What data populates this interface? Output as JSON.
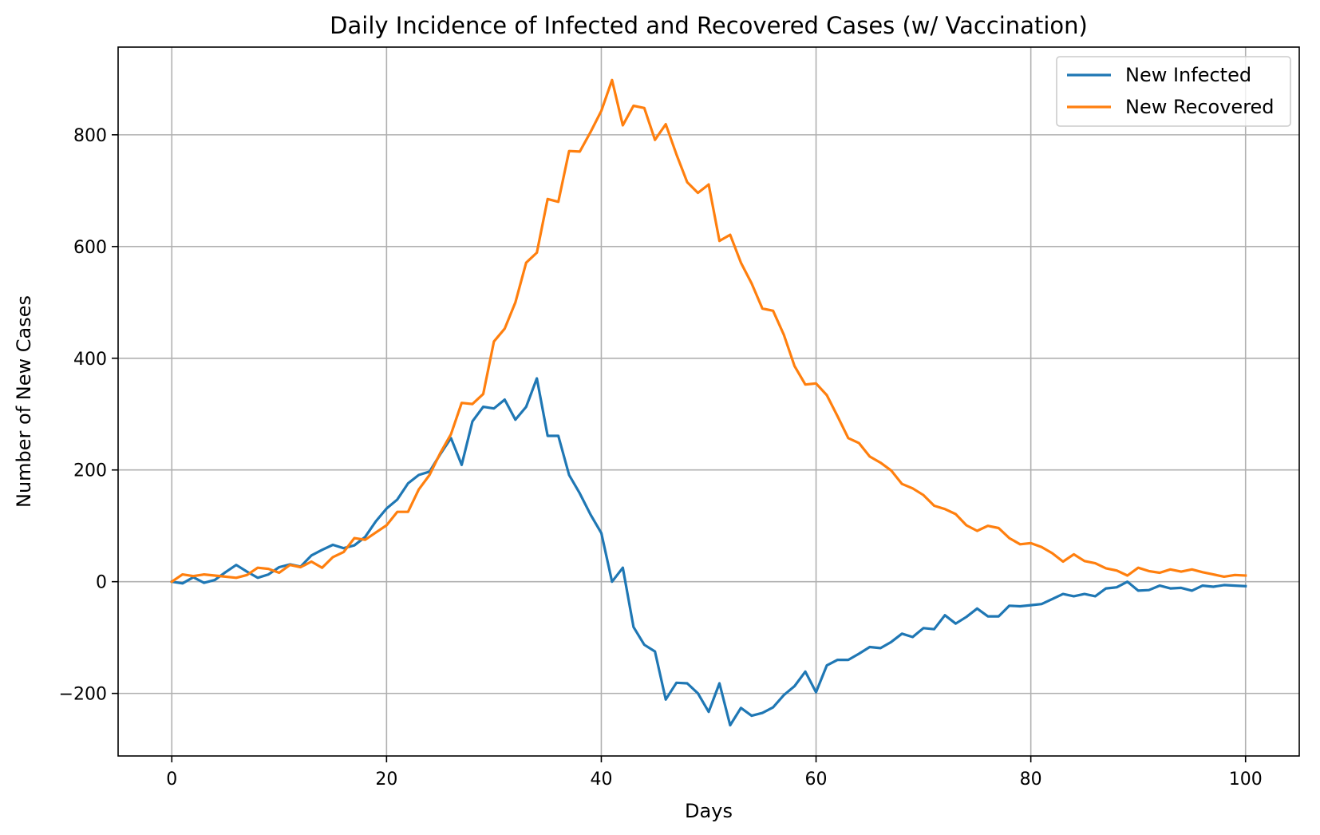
{
  "chart_data": {
    "type": "line",
    "title": "Daily Incidence of Infected and Recovered Cases (w/ Vaccination)",
    "xlabel": "Days",
    "ylabel": "Number of New Cases",
    "xlim": [
      -5,
      105
    ],
    "ylim": [
      -312,
      957
    ],
    "xticks": [
      0,
      20,
      40,
      60,
      80,
      100
    ],
    "yticks": [
      -200,
      0,
      200,
      400,
      600,
      800
    ],
    "ytick_labels": [
      "−200",
      "0",
      "200",
      "400",
      "600",
      "800"
    ],
    "grid": true,
    "legend": "top-right",
    "x": [
      0,
      1,
      2,
      3,
      4,
      5,
      6,
      7,
      8,
      9,
      10,
      11,
      12,
      13,
      14,
      15,
      16,
      17,
      18,
      19,
      20,
      21,
      22,
      23,
      24,
      25,
      26,
      27,
      28,
      29,
      30,
      31,
      32,
      33,
      34,
      35,
      36,
      37,
      38,
      39,
      40,
      41,
      42,
      43,
      44,
      45,
      46,
      47,
      48,
      49,
      50,
      51,
      52,
      53,
      54,
      55,
      56,
      57,
      58,
      59,
      60,
      61,
      62,
      63,
      64,
      65,
      66,
      67,
      68,
      69,
      70,
      71,
      72,
      73,
      74,
      75,
      76,
      77,
      78,
      79,
      80,
      81,
      82,
      83,
      84,
      85,
      86,
      87,
      88,
      89,
      90,
      91,
      92,
      93,
      94,
      95,
      96,
      97,
      98,
      99,
      100
    ],
    "series": [
      {
        "name": "New Infected",
        "color": "#1f77b4",
        "values": [
          0,
          -3,
          8,
          -2,
          3,
          17,
          30,
          18,
          7,
          13,
          26,
          31,
          27,
          47,
          57,
          66,
          60,
          65,
          80,
          108,
          131,
          147,
          176,
          191,
          197,
          228,
          257,
          209,
          287,
          313,
          310,
          326,
          290,
          313,
          364,
          261,
          261,
          191,
          158,
          120,
          87,
          0,
          25,
          -81,
          -113,
          -125,
          -211,
          -181,
          -182,
          -200,
          -233,
          -182,
          -257,
          -226,
          -240,
          -235,
          -225,
          -203,
          -187,
          -161,
          -198,
          -150,
          -140,
          -140,
          -129,
          -117,
          -119,
          -108,
          -93,
          -99,
          -83,
          -85,
          -60,
          -75,
          -63,
          -48,
          -62,
          -62,
          -43,
          -44,
          -42,
          -40,
          -31,
          -22,
          -26,
          -22,
          -26,
          -12,
          -10,
          0,
          -16,
          -15,
          -7,
          -12,
          -11,
          -16,
          -7,
          -9,
          -6,
          -7,
          -8
        ]
      },
      {
        "name": "New Recovered",
        "color": "#ff7f0e",
        "values": [
          0,
          13,
          10,
          13,
          11,
          9,
          7,
          12,
          25,
          23,
          16,
          30,
          26,
          36,
          25,
          44,
          53,
          78,
          75,
          88,
          101,
          125,
          125,
          165,
          191,
          230,
          264,
          320,
          318,
          336,
          430,
          453,
          500,
          571,
          589,
          685,
          680,
          771,
          770,
          805,
          843,
          898,
          817,
          852,
          848,
          791,
          819,
          765,
          715,
          696,
          711,
          610,
          621,
          571,
          534,
          489,
          485,
          442,
          386,
          353,
          355,
          334,
          296,
          257,
          248,
          224,
          213,
          199,
          175,
          167,
          155,
          136,
          130,
          121,
          101,
          91,
          100,
          96,
          78,
          67,
          69,
          62,
          51,
          36,
          49,
          37,
          33,
          24,
          20,
          11,
          25,
          19,
          16,
          22,
          18,
          22,
          17,
          13,
          9,
          12,
          11
        ]
      }
    ]
  }
}
